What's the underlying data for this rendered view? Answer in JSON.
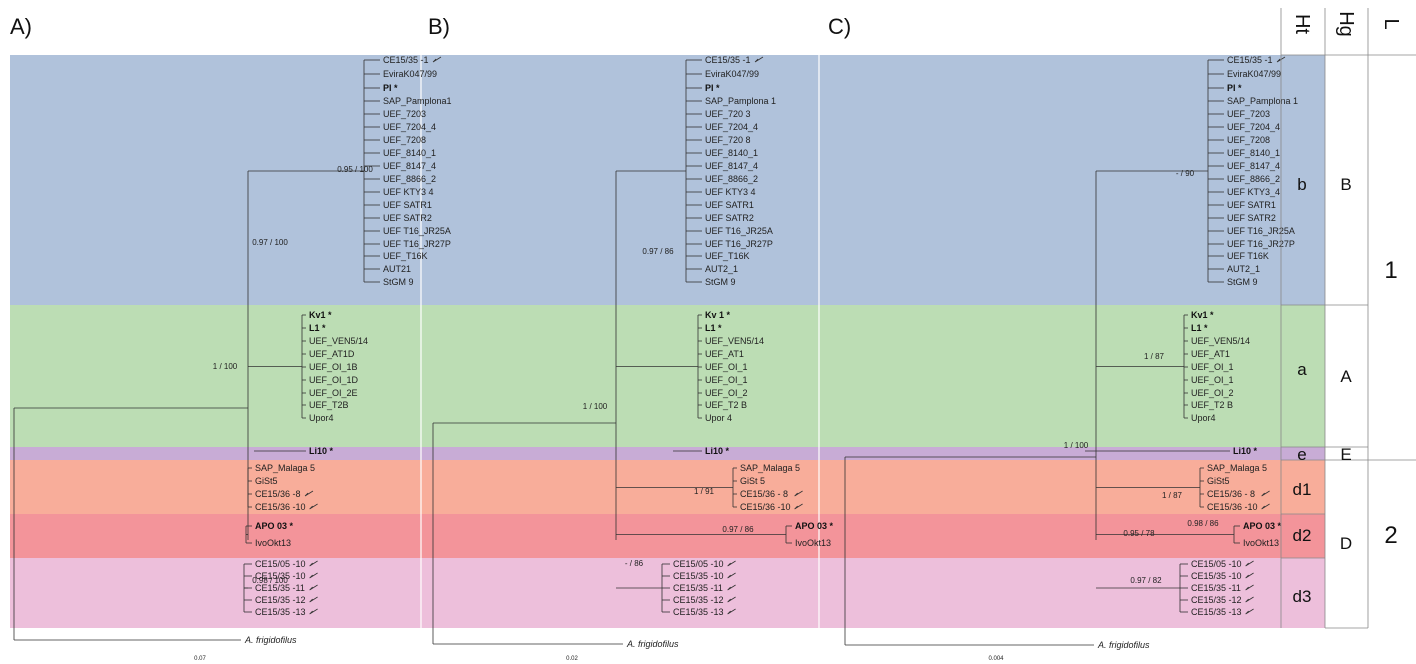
{
  "colors": {
    "b": "#b0c2db",
    "a": "#bcddb4",
    "e": "#c8acd6",
    "d1": "#f8ad9a",
    "d2": "#f3949a",
    "d3": "#edbfdb",
    "grid": "#888888",
    "branch": "#333333",
    "text": "#111111"
  },
  "panels": [
    {
      "label": "A)",
      "scale_label": "0.07",
      "outgroup": "A. frigidofilus",
      "supports": [
        "0.95 / 100",
        "0.97 / 100",
        "1 / 100",
        "0.98 / 100"
      ],
      "tips": [
        "CE15/35 -1",
        "EviraK047/99",
        "PI *",
        "SAP_Pamplona1",
        "UEF_7203",
        "UEF_7204_4",
        "UEF_7208",
        "UEF_8140_1",
        "UEF_8147_4",
        "UEF_8866_2",
        "UEF KTY3 4",
        "UEF SATR1",
        "UEF SATR2",
        "UEF T16_JR25A",
        "UEF T16_JR27P",
        "UEF_T16K",
        "AUT21",
        "StGM 9",
        "Kv1 *",
        "L1 *",
        "UEF_VEN5/14",
        "UEF_AT1D",
        "UEF_OI_1B",
        "UEF_OI_1D",
        "UEF_OI_2E",
        "UEF_T2B",
        "Upor4",
        "Li10 *",
        "SAP_Malaga 5",
        "GiSt5",
        "CE15/36 -8",
        "CE15/36 -10",
        "APO 03 *",
        "IvoOkt13",
        "CE15/05 -10",
        "CE15/35 -10",
        "CE15/35 -11",
        "CE15/35 -12",
        "CE15/35 -13"
      ]
    },
    {
      "label": "B)",
      "scale_label": "0.02",
      "outgroup": "A. frigidofilus",
      "supports": [
        "0.97 / 86",
        "1 / 100",
        "1 / 91",
        "0.97 / 86",
        "- / 86"
      ],
      "tips": [
        "CE15/35 -1",
        "EviraK047/99",
        "PI *",
        "SAP_Pamplona 1",
        "UEF_720 3",
        "UEF_7204_4",
        "UEF_720 8",
        "UEF_8140_1",
        "UEF_8147_4",
        "UEF_8866_2",
        "UEF KTY3 4",
        "UEF SATR1",
        "UEF SATR2",
        "UEF T16_JR25A",
        "UEF T16_JR27P",
        "UEF_T16K",
        "AUT2_1",
        "StGM 9",
        "Kv 1 *",
        "L1 *",
        "UEF_VEN5/14",
        "UEF_AT1",
        "UEF_OI_1",
        "UEF_OI_1",
        "UEF_OI_2",
        "UEF_T2 B",
        "Upor 4",
        "Li10 *",
        "SAP_Malaga 5",
        "GiSt 5",
        "CE15/36 - 8",
        "CE15/36 -10",
        "APO 03 *",
        "IvoOkt13",
        "CE15/05 -10",
        "CE15/35 -10",
        "CE15/35 -11",
        "CE15/35 -12",
        "CE15/35 -13"
      ]
    },
    {
      "label": "C)",
      "scale_label": "0.004",
      "outgroup": "A. frigidofilus",
      "supports": [
        "- / 90",
        "1 / 87",
        "1 / 100",
        "1 / 87",
        "0.98 / 86",
        "0.95 / 78",
        "0.97 / 82"
      ],
      "tips": [
        "CE15/35 -1",
        "EviraK047/99",
        "PI *",
        "SAP_Pamplona 1",
        "UEF_7203",
        "UEF_7204_4",
        "UEF_7208",
        "UEF_8140_1",
        "UEF_8147_4",
        "UEF_8866_2",
        "UEF KTY3_4",
        "UEF SATR1",
        "UEF SATR2",
        "UEF T16_JR25A",
        "UEF T16_JR27P",
        "UEF T16K",
        "AUT2_1",
        "StGM 9",
        "Kv1 *",
        "L1 *",
        "UEF_VEN5/14",
        "UEF_AT1",
        "UEF_OI_1",
        "UEF_OI_1",
        "UEF_OI_2",
        "UEF_T2 B",
        "Upor4",
        "Li10 *",
        "SAP_Malaga 5",
        "GiSt5",
        "CE15/36 - 8",
        "CE15/36 -10",
        "APO 03 *",
        "IvoOkt13",
        "CE15/05 -10",
        "CE15/35 -10",
        "CE15/35 -11",
        "CE15/35 -12",
        "CE15/35 -13"
      ]
    }
  ],
  "table": {
    "headers": [
      "Ht",
      "Hg",
      "L"
    ],
    "ht": [
      "b",
      "a",
      "e",
      "d1",
      "d2",
      "d3"
    ],
    "hg": [
      "B",
      "A",
      "E",
      "D"
    ],
    "l": [
      "1",
      "2"
    ]
  }
}
